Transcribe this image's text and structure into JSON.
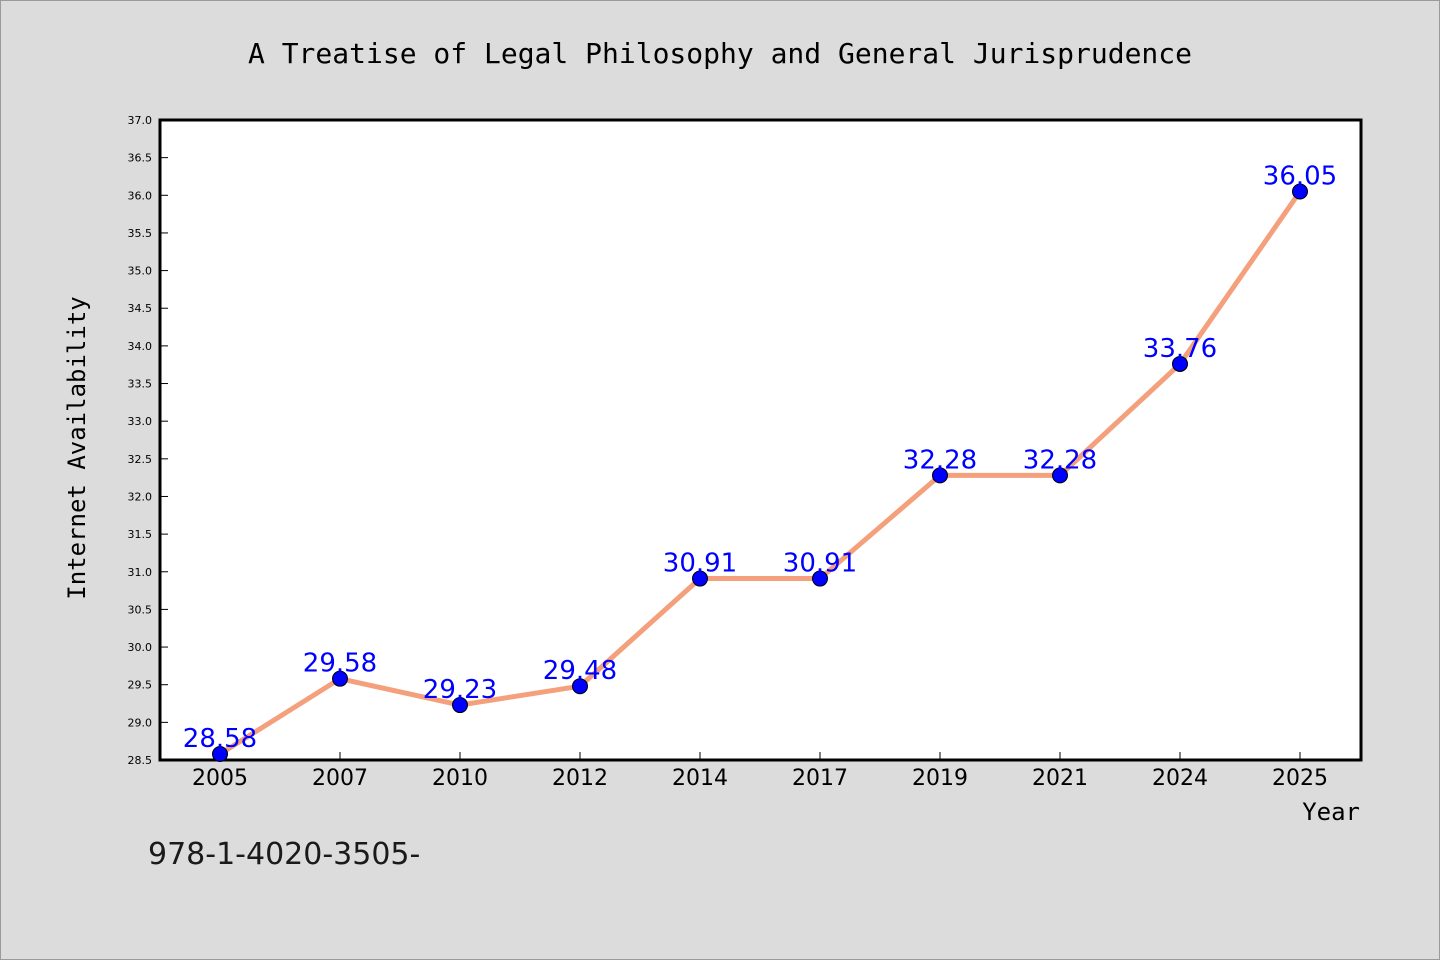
{
  "chart_data": {
    "type": "line",
    "title": "A Treatise of Legal Philosophy and General Jurisprudence",
    "xlabel": "Year",
    "ylabel": "Internet Availability",
    "categories": [
      "2005",
      "2007",
      "2010",
      "2012",
      "2014",
      "2017",
      "2019",
      "2021",
      "2024",
      "2025"
    ],
    "values": [
      28.58,
      29.58,
      29.23,
      29.48,
      30.91,
      30.91,
      32.28,
      32.28,
      33.76,
      36.05
    ],
    "data_labels": [
      "28.58",
      "29.58",
      "29.23",
      "29.48",
      "30.91",
      "30.91",
      "32.28",
      "32.28",
      "33.76",
      "36.05"
    ],
    "ylim": [
      28.5,
      37.0
    ],
    "yticks": [
      "28.5",
      "29.0",
      "29.5",
      "30.0",
      "30.5",
      "31.0",
      "31.5",
      "32.0",
      "32.5",
      "33.0",
      "33.5",
      "34.0",
      "34.5",
      "35.0",
      "35.5",
      "36.0",
      "36.5",
      "37.0"
    ],
    "grid": false,
    "legend": "none",
    "line_color": "#f4a07c",
    "marker_color": "#0000ff"
  },
  "footer": {
    "code": "978-1-4020-3505-"
  }
}
